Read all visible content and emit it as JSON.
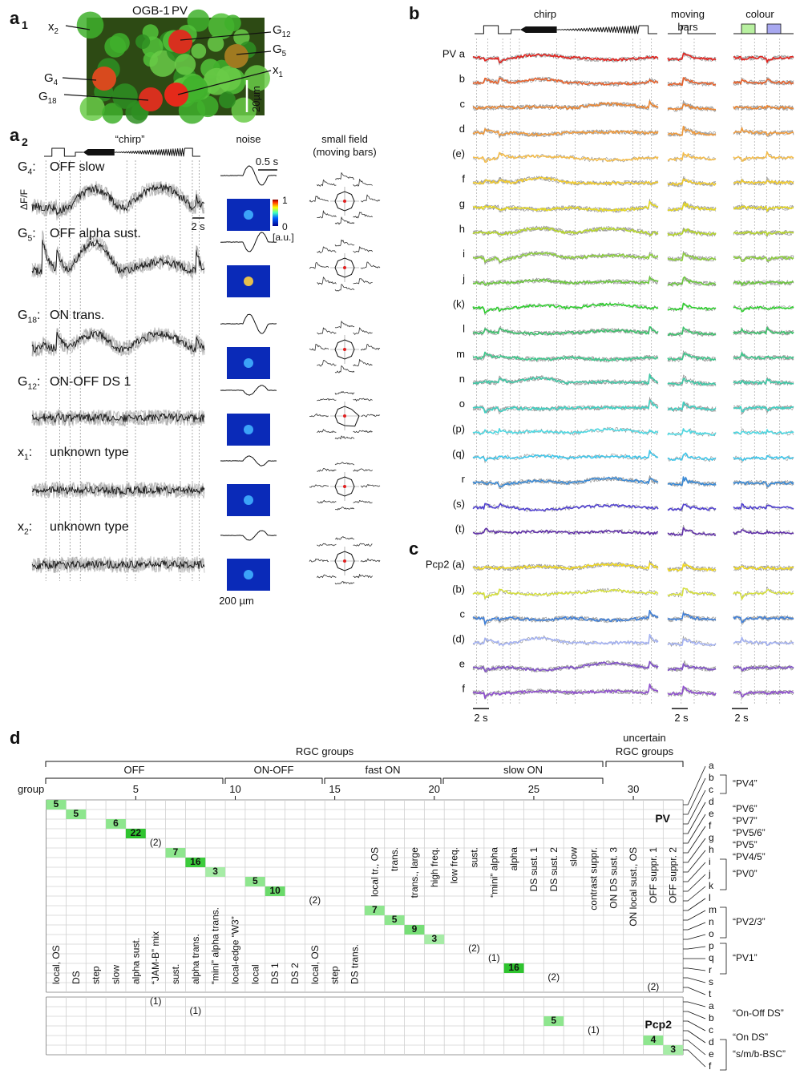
{
  "panel_a1": {
    "label": "a",
    "sub": "1",
    "dye": "OGB-1",
    "marker": "PV",
    "scale": "20µm",
    "cells": [
      {
        "letter": "x",
        "sub": "2"
      },
      {
        "letter": "G",
        "sub": "12"
      },
      {
        "letter": "G",
        "sub": "5"
      },
      {
        "letter": "G",
        "sub": "4"
      },
      {
        "letter": "x",
        "sub": "1"
      },
      {
        "letter": "G",
        "sub": "18"
      }
    ]
  },
  "panel_a2": {
    "label": "a",
    "sub": "2",
    "stimulus": "“chirp”",
    "y_axis": "ΔF/F",
    "time_scale": "2 s",
    "separator": ":",
    "noise_title": "noise",
    "kernel_scale": "0.5 s",
    "colorbar_ticks": [
      1,
      0
    ],
    "colorbar_unit": "[a.u.]",
    "space_scale": "200 µm",
    "field_title": [
      "small field",
      "(moving bars)"
    ],
    "cells": [
      {
        "letter": "G",
        "sub": "4",
        "type": "OFF slow"
      },
      {
        "letter": "G",
        "sub": "5",
        "type": "OFF alpha sust."
      },
      {
        "letter": "G",
        "sub": "18",
        "type": "ON trans."
      },
      {
        "letter": "G",
        "sub": "12",
        "type": "ON-OFF DS 1"
      },
      {
        "letter": "x",
        "sub": "1",
        "type": "unknown type"
      },
      {
        "letter": "x",
        "sub": "2",
        "type": "unknown type"
      }
    ]
  },
  "panel_b": {
    "label": "b",
    "columns": [
      [
        "chirp"
      ],
      [
        "moving",
        "bars"
      ],
      [
        "colour"
      ]
    ],
    "time_scale": "2 s",
    "rows": [
      {
        "label": "PV a",
        "color": "#e4231e"
      },
      {
        "label": "b",
        "color": "#e8612b"
      },
      {
        "label": "c",
        "color": "#ec8530"
      },
      {
        "label": "d",
        "color": "#f09a3c"
      },
      {
        "label": "(e)",
        "color": "#f4bd4c"
      },
      {
        "label": "f",
        "color": "#f2cb2c"
      },
      {
        "label": "g",
        "color": "#e6d81e"
      },
      {
        "label": "h",
        "color": "#b6d62a"
      },
      {
        "label": "i",
        "color": "#8ccf3c"
      },
      {
        "label": "j",
        "color": "#6cc83e"
      },
      {
        "label": "(k)",
        "color": "#2fcf2f"
      },
      {
        "label": "l",
        "color": "#3cc06c"
      },
      {
        "label": "m",
        "color": "#3cc88c"
      },
      {
        "label": "n",
        "color": "#3ec8a6"
      },
      {
        "label": "o",
        "color": "#3ed0c2"
      },
      {
        "label": "(p)",
        "color": "#4fd8e2"
      },
      {
        "label": "(q)",
        "color": "#3ec6ea"
      },
      {
        "label": "r",
        "color": "#3a8ad6"
      },
      {
        "label": "(s)",
        "color": "#5040d0"
      },
      {
        "label": "(t)",
        "color": "#6030a8"
      }
    ]
  },
  "panel_c": {
    "label": "c",
    "rows": [
      {
        "label": "Pcp2 (a)",
        "color": "#f0d820"
      },
      {
        "label": "(b)",
        "color": "#d6e040"
      },
      {
        "label": "c",
        "color": "#4080d8"
      },
      {
        "label": "(d)",
        "color": "#a4b2f2"
      },
      {
        "label": "e",
        "color": "#8050c8"
      },
      {
        "label": "f",
        "color": "#9050d0"
      }
    ]
  },
  "panel_d": {
    "label": "d",
    "title": "RGC groups",
    "uncertain_title": [
      "uncertain",
      "RGC groups"
    ],
    "categories": [
      "OFF",
      "ON-OFF",
      "fast ON",
      "slow ON"
    ],
    "group_label": "group",
    "group_ticks": [
      5,
      10,
      15,
      20,
      25,
      30
    ],
    "group_names": [
      "local, OS",
      "DS",
      "step",
      "slow",
      "alpha sust.",
      "“JAM-B” mix",
      "sust.",
      "alpha trans.",
      "“mini” alpha trans.",
      "local-edge “W3”",
      "local",
      "DS 1",
      "DS 2",
      "local, OS",
      "step",
      "DS trans.",
      "local tr., OS",
      "trans.",
      "trans., large",
      "high freq.",
      "low freq.",
      "sust.",
      "“mini” alpha",
      "alpha",
      "DS sust. 1",
      "DS sust. 2",
      "slow",
      "contrast suppr.",
      "ON DS sust. 3",
      "ON local sust., OS",
      "OFF suppr. 1",
      "OFF suppr. 2"
    ],
    "pv": {
      "label": "PV",
      "letters": [
        "a",
        "b",
        "c",
        "d",
        "e",
        "f",
        "g",
        "h",
        "i",
        "j",
        "k",
        "l",
        "m",
        "n",
        "o",
        "p",
        "q",
        "r",
        "s",
        "t"
      ],
      "entries": [
        {
          "group": 1,
          "label": "5",
          "color": "#8ee68e"
        },
        {
          "group": 2,
          "label": "5",
          "color": "#8ee68e"
        },
        {
          "group": 4,
          "label": "6",
          "color": "#8ee68e"
        },
        {
          "group": 5,
          "label": "22",
          "color": "#2fc42f"
        },
        {
          "group": 6,
          "label": "(2)"
        },
        {
          "group": 7,
          "label": "7",
          "color": "#8ee68e"
        },
        {
          "group": 8,
          "label": "16",
          "color": "#3ccc3c"
        },
        {
          "group": 9,
          "label": "3",
          "color": "#a6eca6"
        },
        {
          "group": 11,
          "label": "5",
          "color": "#8ee68e"
        },
        {
          "group": 12,
          "label": "10",
          "color": "#6ada6a"
        },
        {
          "group": 14,
          "label": "(2)"
        },
        {
          "group": 17,
          "label": "7",
          "color": "#8ee68e"
        },
        {
          "group": 18,
          "label": "5",
          "color": "#8ee68e"
        },
        {
          "group": 19,
          "label": "9",
          "color": "#76de76"
        },
        {
          "group": 20,
          "label": "3",
          "color": "#a6eca6"
        },
        {
          "group": 22,
          "label": "(2)"
        },
        {
          "group": 23,
          "label": "(1)"
        },
        {
          "group": 24,
          "label": "16",
          "color": "#2fc42f"
        },
        {
          "group": 26,
          "label": "(2)"
        },
        {
          "group": 31,
          "label": "(2)"
        }
      ]
    },
    "pcp2": {
      "label": "Pcp2",
      "letters": [
        "a",
        "b",
        "c",
        "d",
        "e",
        "f"
      ],
      "entries": [
        {
          "group": 6,
          "label": "(1)"
        },
        {
          "group": 8,
          "label": "(1)"
        },
        {
          "group": 26,
          "label": "5",
          "color": "#8ee68e"
        },
        {
          "group": 28,
          "label": "(1)"
        },
        {
          "group": 31,
          "label": "4",
          "color": "#8ee68e"
        },
        {
          "group": 32,
          "label": "3",
          "color": "#a6eca6"
        }
      ]
    },
    "annotations": [
      "“PV4”",
      "“PV6”",
      "“PV7”",
      "“PV5/6”",
      "“PV5”",
      "“PV4/5”",
      "“PV0”",
      "“PV2/3”",
      "“PV1”",
      "“On-Off DS”",
      "“On DS”",
      "“s/m/b-BSC”"
    ]
  }
}
